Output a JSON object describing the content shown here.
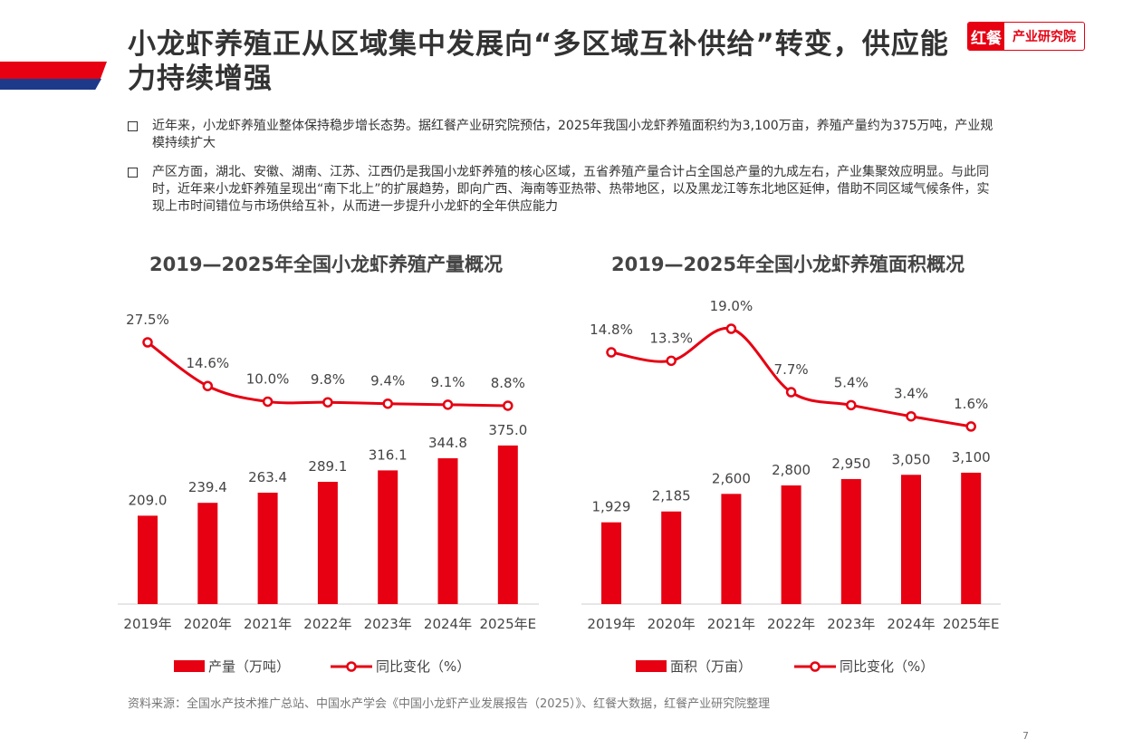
{
  "header": {
    "title": "小龙虾养殖正从区域集中发展向“多区域互补供给”转变，供应能力持续增强",
    "logo_left": "红餐",
    "logo_right": "产业研究院"
  },
  "bullets": [
    "近年来，小龙虾养殖业整体保持稳步增长态势。据红餐产业研究院预估，2025年我国小龙虾养殖面积约为3,100万亩，养殖产量约为375万吨，产业规模持续扩大",
    "产区方面，湖北、安徽、湖南、江苏、江西仍是我国小龙虾养殖的核心区域，五省养殖产量合计占全国总产量的九成左右，产业集聚效应明显。与此同时，近年来小龙虾养殖呈现出“南下北上”的扩展趋势，即向广西、海南等亚热带、热带地区，以及黑龙江等东北地区延伸，借助不同区域气候条件，实现上市时间错位与市场供给互补，从而进一步提升小龙虾的全年供应能力"
  ],
  "chart_data": [
    {
      "type": "bar+line",
      "title": "2019—2025年全国小龙虾养殖产量概况",
      "categories": [
        "2019年",
        "2020年",
        "2021年",
        "2022年",
        "2023年",
        "2024年",
        "2025年E"
      ],
      "series": [
        {
          "name": "产量（万吨）",
          "type": "bar",
          "values": [
            209.0,
            239.4,
            263.4,
            289.1,
            316.1,
            344.8,
            375.0
          ],
          "labels": [
            "209.0",
            "239.4",
            "263.4",
            "289.1",
            "316.1",
            "344.8",
            "375.0"
          ]
        },
        {
          "name": "同比变化（%）",
          "type": "line",
          "values": [
            27.5,
            14.6,
            10.0,
            9.8,
            9.4,
            9.1,
            8.8
          ],
          "labels": [
            "27.5%",
            "14.6%",
            "10.0%",
            "9.8%",
            "9.4%",
            "9.1%",
            "8.8%"
          ]
        }
      ],
      "legend": "bottom",
      "grid": false
    },
    {
      "type": "bar+line",
      "title": "2019—2025年全国小龙虾养殖面积概况",
      "categories": [
        "2019年",
        "2020年",
        "2021年",
        "2022年",
        "2023年",
        "2024年",
        "2025年E"
      ],
      "series": [
        {
          "name": "面积（万亩）",
          "type": "bar",
          "values": [
            1929,
            2185,
            2600,
            2800,
            2950,
            3050,
            3100
          ],
          "labels": [
            "1,929",
            "2,185",
            "2,600",
            "2,800",
            "2,950",
            "3,050",
            "3,100"
          ]
        },
        {
          "name": "同比变化（%）",
          "type": "line",
          "values": [
            14.8,
            13.3,
            19.0,
            7.7,
            5.4,
            3.4,
            1.6
          ],
          "labels": [
            "14.8%",
            "13.3%",
            "19.0%",
            "7.7%",
            "5.4%",
            "3.4%",
            "1.6%"
          ]
        }
      ],
      "legend": "bottom",
      "grid": false
    }
  ],
  "colors": {
    "accent": "#e60012",
    "blue": "#1d3a8a"
  },
  "source": "资料来源：全国水产技术推广总站、中国水产学会《中国小龙虾产业发展报告（2025）》、红餐大数据，红餐产业研究院整理",
  "page_number": "7"
}
